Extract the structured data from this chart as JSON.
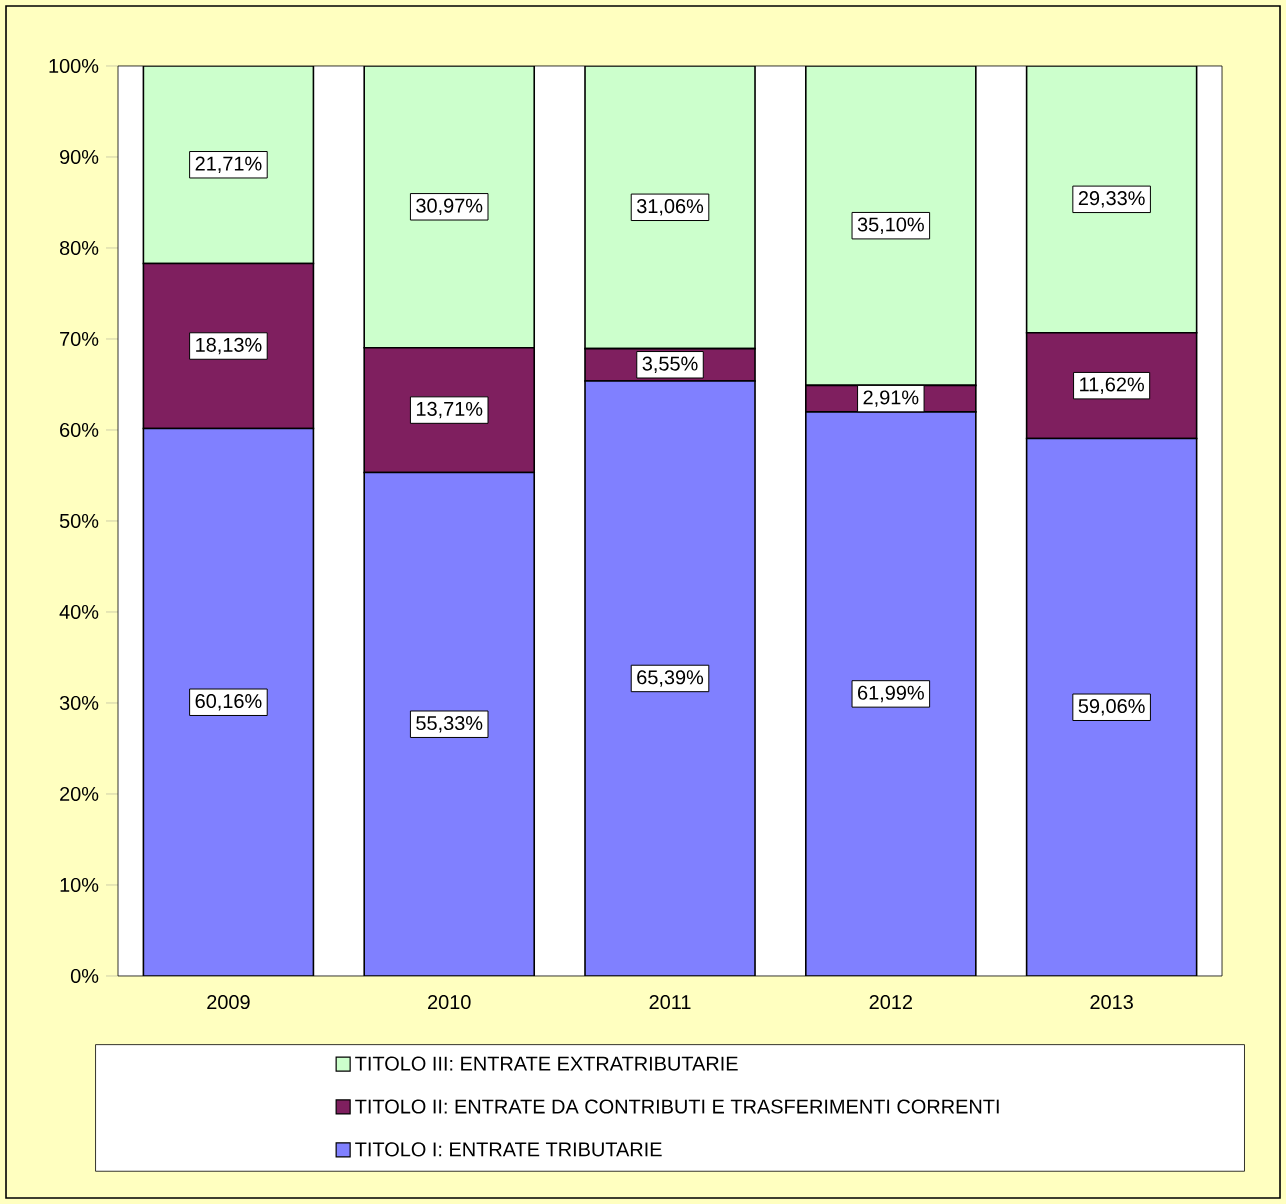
{
  "chart_data": {
    "type": "bar",
    "stacked": true,
    "categories": [
      "2009",
      "2010",
      "2011",
      "2012",
      "2013"
    ],
    "series": [
      {
        "name": "TITOLO I: ENTRATE TRIBUTARIE",
        "color": "#8080ff",
        "values": [
          60.16,
          55.33,
          65.39,
          61.99,
          59.06
        ],
        "value_labels": [
          "60,16%",
          "55,33%",
          "65,39%",
          "61,99%",
          "59,06%"
        ]
      },
      {
        "name": "TITOLO II: ENTRATE DA CONTRIBUTI E TRASFERIMENTI CORRENTI",
        "color": "#7f1f5f",
        "values": [
          18.13,
          13.71,
          3.55,
          2.91,
          11.62
        ],
        "value_labels": [
          "18,13%",
          "13,71%",
          "3,55%",
          "2,91%",
          "11,62%"
        ]
      },
      {
        "name": "TITOLO III: ENTRATE EXTRATRIBUTARIE",
        "color": "#ccffcc",
        "values": [
          21.71,
          30.97,
          31.06,
          35.1,
          29.33
        ],
        "value_labels": [
          "21,71%",
          "30,97%",
          "31,06%",
          "35,10%",
          "29,33%"
        ]
      }
    ],
    "ylim": [
      0,
      100
    ],
    "yticks": [
      {
        "value": 0,
        "label": "0%"
      },
      {
        "value": 10,
        "label": "10%"
      },
      {
        "value": 20,
        "label": "20%"
      },
      {
        "value": 30,
        "label": "30%"
      },
      {
        "value": 40,
        "label": "40%"
      },
      {
        "value": 50,
        "label": "50%"
      },
      {
        "value": 60,
        "label": "60%"
      },
      {
        "value": 70,
        "label": "70%"
      },
      {
        "value": 80,
        "label": "80%"
      },
      {
        "value": 90,
        "label": "90%"
      },
      {
        "value": 100,
        "label": "100%"
      }
    ],
    "grid": false,
    "legend": "bottom"
  }
}
